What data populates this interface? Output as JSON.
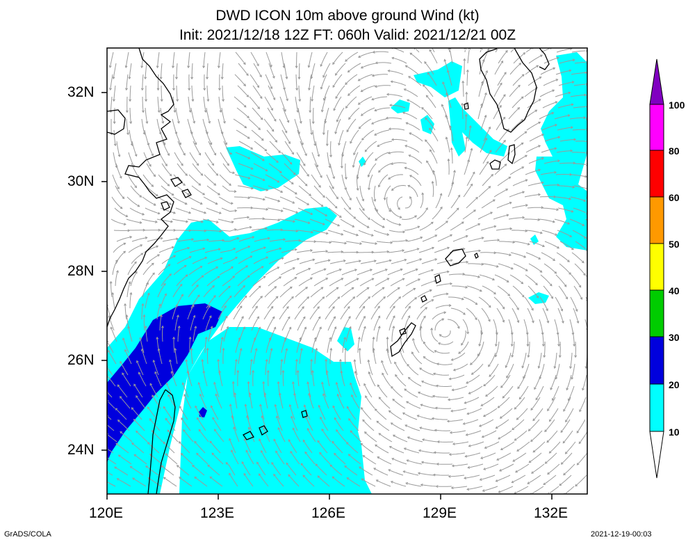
{
  "title": {
    "line1": "DWD ICON 10m above ground Wind (kt)",
    "line2": "Init: 2021/12/18 12Z  FT: 060h  Valid: 2021/12/21 00Z"
  },
  "axes": {
    "lat_labels": [
      "32N",
      "30N",
      "28N",
      "26N",
      "24N"
    ],
    "lon_labels": [
      "120E",
      "123E",
      "126E",
      "129E",
      "132E"
    ]
  },
  "colorbar": {
    "levels": [
      "100",
      "80",
      "60",
      "50",
      "40",
      "30",
      "20",
      "10"
    ],
    "colors": {
      "above_100": "#8000c0",
      "80_100": "#ff00ff",
      "60_80": "#ff0000",
      "50_60": "#ff9900",
      "40_50": "#ffff00",
      "30_40": "#00cc00",
      "20_30": "#0000dd",
      "10_20": "#00ffff",
      "below_10": "#ffffff"
    }
  },
  "colors": {
    "streamline": "#9a9a9a",
    "coast": "#000000",
    "wind_10_20": "#00ffff",
    "wind_20_30": "#0000dd"
  },
  "footer": {
    "left": "GrADS/COLA",
    "right": "2021-12-19-00:03"
  }
}
